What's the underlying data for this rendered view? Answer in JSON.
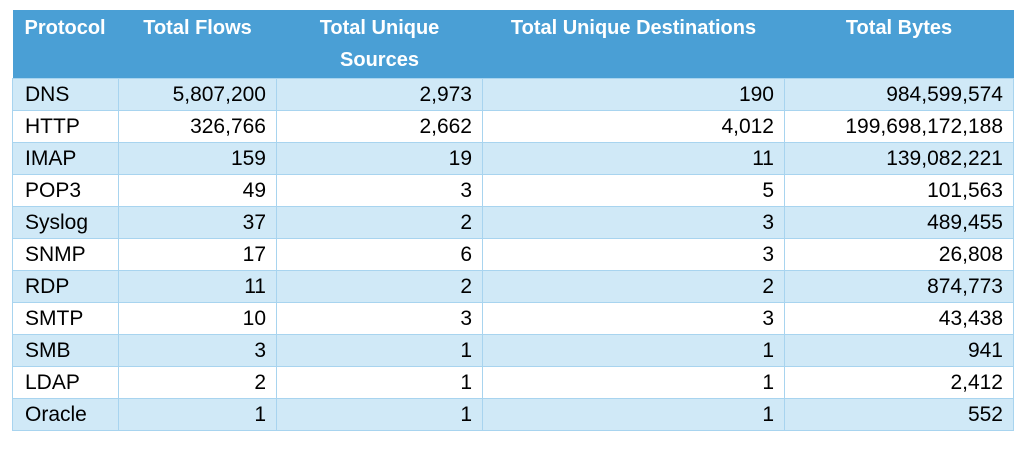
{
  "headers": [
    "Protocol",
    "Total Flows",
    "Total Unique Sources",
    "Total Unique Destinations",
    "Total Bytes"
  ],
  "rows": [
    {
      "protocol": "DNS",
      "flows": "5,807,200",
      "sources": "2,973",
      "destinations": "190",
      "bytes": "984,599,574"
    },
    {
      "protocol": "HTTP",
      "flows": "326,766",
      "sources": "2,662",
      "destinations": "4,012",
      "bytes": "199,698,172,188"
    },
    {
      "protocol": "IMAP",
      "flows": "159",
      "sources": "19",
      "destinations": "11",
      "bytes": "139,082,221"
    },
    {
      "protocol": "POP3",
      "flows": "49",
      "sources": "3",
      "destinations": "5",
      "bytes": "101,563"
    },
    {
      "protocol": "Syslog",
      "flows": "37",
      "sources": "2",
      "destinations": "3",
      "bytes": "489,455"
    },
    {
      "protocol": "SNMP",
      "flows": "17",
      "sources": "6",
      "destinations": "3",
      "bytes": "26,808"
    },
    {
      "protocol": "RDP",
      "flows": "11",
      "sources": "2",
      "destinations": "2",
      "bytes": "874,773"
    },
    {
      "protocol": "SMTP",
      "flows": "10",
      "sources": "3",
      "destinations": "3",
      "bytes": "43,438"
    },
    {
      "protocol": "SMB",
      "flows": "3",
      "sources": "1",
      "destinations": "1",
      "bytes": "941"
    },
    {
      "protocol": "LDAP",
      "flows": "2",
      "sources": "1",
      "destinations": "1",
      "bytes": "2,412"
    },
    {
      "protocol": "Oracle",
      "flows": "1",
      "sources": "1",
      "destinations": "1",
      "bytes": "552"
    }
  ],
  "colors": {
    "header_bg": "#4a9fd5",
    "row_alt": "#d0e9f7",
    "row_plain": "#ffffff",
    "border": "#a8d4ef"
  }
}
